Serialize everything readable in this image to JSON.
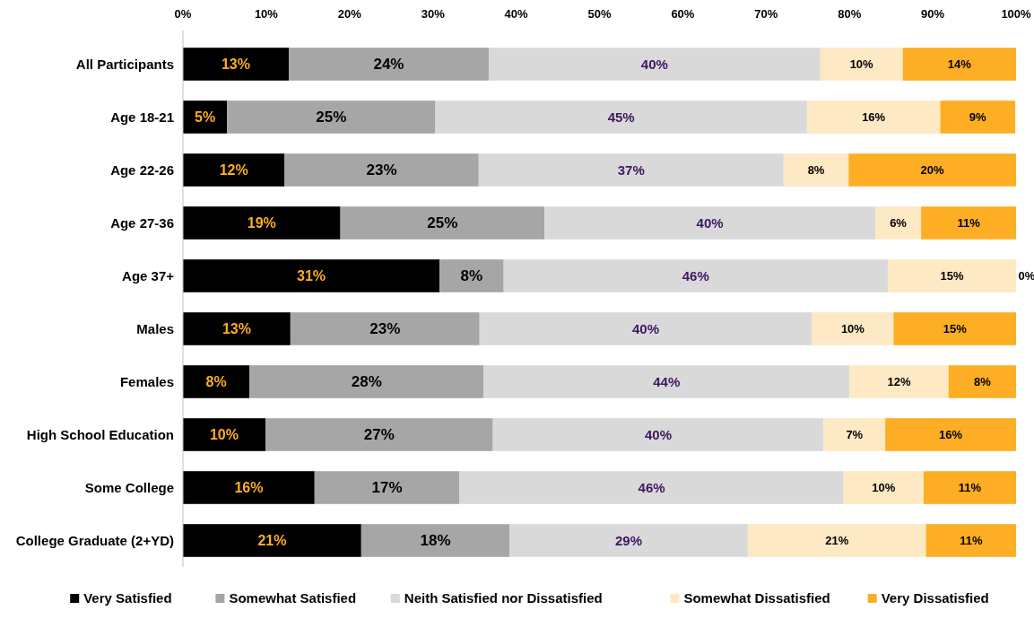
{
  "chart_data": {
    "type": "bar",
    "orientation": "horizontal",
    "stacked": true,
    "categories": [
      "All Participants",
      "Age 18-21",
      "Age 22-26",
      "Age 27-36",
      "Age 37+",
      "Males",
      "Females",
      "High School Education",
      "Some College",
      "College Graduate (2+YD)"
    ],
    "series": [
      {
        "name": "Very Satisfied",
        "color": "#000000",
        "values": [
          12.7,
          5.3,
          12.2,
          18.9,
          30.8,
          12.9,
          8.0,
          9.9,
          15.8,
          21.4
        ],
        "value_labels": [
          "13%",
          "5%",
          "12%",
          "19%",
          "31%",
          "13%",
          "8%",
          "10%",
          "16%",
          "21%"
        ]
      },
      {
        "name": "Somewhat Satisfied",
        "color": "#a6a6a6",
        "values": [
          24.0,
          25.0,
          23.3,
          24.5,
          7.7,
          22.7,
          28.1,
          27.3,
          17.4,
          17.8
        ],
        "value_labels": [
          "24%",
          "25%",
          "23%",
          "25%",
          "8%",
          "23%",
          "28%",
          "27%",
          "17%",
          "18%"
        ]
      },
      {
        "name": "Neith Satisfied nor Dissatisfied",
        "color": "#d9d9d9",
        "values": [
          39.8,
          44.6,
          36.6,
          39.7,
          46.1,
          39.9,
          43.9,
          39.7,
          46.1,
          28.6
        ],
        "value_labels": [
          "40%",
          "45%",
          "37%",
          "40%",
          "46%",
          "40%",
          "44%",
          "40%",
          "46%",
          "29%"
        ]
      },
      {
        "name": "Somewhat Dissatisfied",
        "color": "#fde9c3",
        "values": [
          9.9,
          16.0,
          7.8,
          5.5,
          15.4,
          9.8,
          11.9,
          7.4,
          9.6,
          21.4
        ],
        "value_labels": [
          "10%",
          "16%",
          "8%",
          "6%",
          "15%",
          "10%",
          "12%",
          "7%",
          "10%",
          "21%"
        ]
      },
      {
        "name": "Very Dissatisfied",
        "color": "#fdae24",
        "values": [
          13.6,
          9.0,
          20.1,
          11.4,
          0,
          14.7,
          8.1,
          15.7,
          11.1,
          10.8
        ],
        "value_labels": [
          "14%",
          "9%",
          "20%",
          "11%",
          "0%",
          "15%",
          "8%",
          "16%",
          "11%",
          "11%"
        ]
      }
    ],
    "xlim": [
      0,
      100
    ],
    "xticks": [
      {
        "value": 0,
        "label": "0%"
      },
      {
        "value": 10,
        "label": "10%"
      },
      {
        "value": 20,
        "label": "20%"
      },
      {
        "value": 30,
        "label": "30%"
      },
      {
        "value": 40,
        "label": "40%"
      },
      {
        "value": 50,
        "label": "50%"
      },
      {
        "value": 60,
        "label": "60%"
      },
      {
        "value": 70,
        "label": "70%"
      },
      {
        "value": 80,
        "label": "80%"
      },
      {
        "value": 90,
        "label": "90%"
      },
      {
        "value": 100,
        "label": "100%"
      }
    ],
    "grid": false,
    "legend": "bottom"
  }
}
